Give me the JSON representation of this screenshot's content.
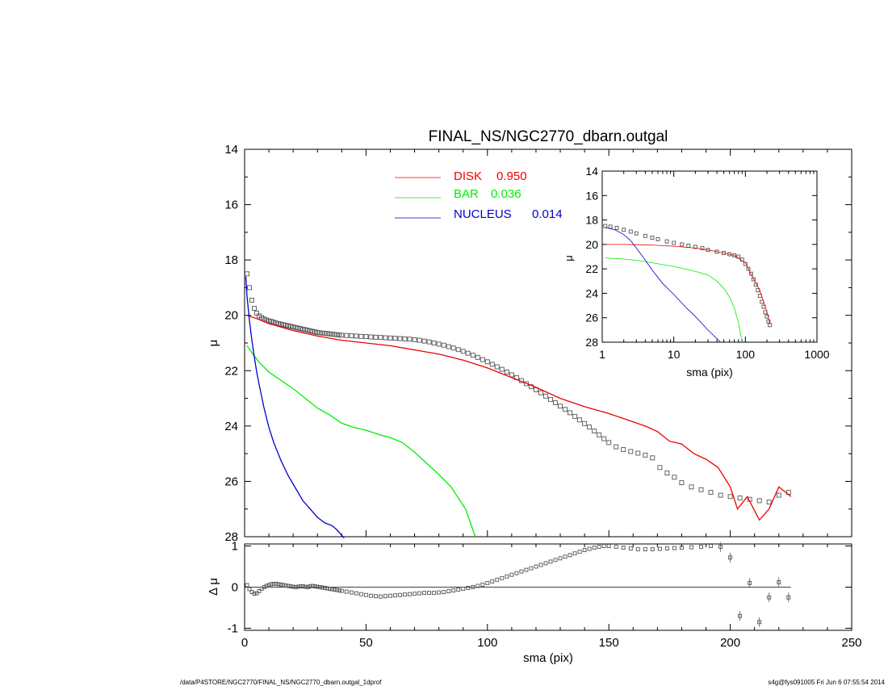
{
  "chart_data": [
    {
      "id": "main",
      "type": "scatter",
      "title": "FINAL_NS/NGC2770_dbarn.outgal",
      "xlabel": "",
      "ylabel": "μ",
      "xlim": [
        0,
        250
      ],
      "ylim": [
        14,
        28
      ],
      "y_inverted": true,
      "yticks": [
        "14",
        "16",
        "18",
        "20",
        "22",
        "24",
        "26",
        "28"
      ],
      "legend_position": "top-center",
      "legend": [
        {
          "label": "DISK",
          "value": "0.950",
          "color": "#ee0000"
        },
        {
          "label": "BAR",
          "value": "0.036",
          "color": "#00ee00"
        },
        {
          "label": "NUCLEUS",
          "value": "0.014",
          "color": "#0000cc"
        }
      ],
      "observed": {
        "x": [
          1,
          2,
          3,
          4,
          5,
          6,
          7,
          8,
          9,
          10,
          11,
          12,
          13,
          14,
          15,
          16,
          17,
          18,
          19,
          20,
          21,
          22,
          23,
          24,
          25,
          26,
          27,
          28,
          29,
          30,
          31,
          32,
          33,
          34,
          35,
          36,
          37,
          38,
          39,
          40,
          42,
          44,
          46,
          48,
          50,
          52,
          54,
          56,
          58,
          60,
          62,
          64,
          66,
          68,
          70,
          72,
          74,
          76,
          78,
          80,
          82,
          84,
          86,
          88,
          90,
          92,
          94,
          96,
          98,
          100,
          102,
          104,
          106,
          108,
          110,
          112,
          114,
          116,
          118,
          120,
          122,
          124,
          126,
          128,
          130,
          132,
          134,
          136,
          138,
          140,
          142,
          144,
          146,
          148,
          150,
          153,
          156,
          159,
          162,
          165,
          168,
          171,
          174,
          177,
          180,
          184,
          188,
          192,
          196,
          200,
          204,
          208,
          212,
          216,
          220,
          224
        ],
        "y": [
          18.5,
          19.0,
          19.45,
          19.75,
          19.92,
          20.02,
          20.08,
          20.13,
          20.17,
          20.2,
          20.22,
          20.25,
          20.28,
          20.3,
          20.32,
          20.34,
          20.36,
          20.38,
          20.4,
          20.42,
          20.44,
          20.46,
          20.48,
          20.5,
          20.52,
          20.54,
          20.56,
          20.58,
          20.6,
          20.62,
          20.63,
          20.64,
          20.65,
          20.66,
          20.67,
          20.68,
          20.69,
          20.7,
          20.71,
          20.72,
          20.73,
          20.74,
          20.75,
          20.76,
          20.77,
          20.78,
          20.79,
          20.8,
          20.81,
          20.82,
          20.83,
          20.84,
          20.85,
          20.86,
          20.88,
          20.9,
          20.93,
          20.96,
          21.0,
          21.04,
          21.08,
          21.13,
          21.18,
          21.24,
          21.3,
          21.37,
          21.44,
          21.52,
          21.6,
          21.68,
          21.77,
          21.86,
          21.95,
          22.05,
          22.15,
          22.25,
          22.36,
          22.47,
          22.58,
          22.69,
          22.8,
          22.92,
          23.04,
          23.16,
          23.28,
          23.4,
          23.52,
          23.65,
          23.78,
          23.91,
          24.04,
          24.18,
          24.32,
          24.46,
          24.6,
          24.75,
          24.85,
          24.92,
          24.98,
          25.05,
          25.15,
          25.5,
          25.7,
          25.85,
          26.05,
          26.2,
          26.3,
          26.4,
          26.5,
          26.55,
          26.6,
          26.65,
          26.7,
          26.75,
          26.5,
          26.4
        ]
      },
      "disk": {
        "x": [
          1,
          5,
          10,
          20,
          30,
          40,
          50,
          60,
          70,
          80,
          90,
          100,
          110,
          120,
          130,
          140,
          150,
          160,
          165,
          170,
          175,
          180,
          185,
          190,
          195,
          200,
          203,
          207,
          212,
          216,
          220,
          225
        ],
        "y": [
          20.0,
          20.12,
          20.3,
          20.55,
          20.75,
          20.9,
          21.0,
          21.1,
          21.25,
          21.4,
          21.62,
          21.9,
          22.25,
          22.6,
          23.0,
          23.3,
          23.55,
          23.85,
          24.0,
          24.2,
          24.55,
          24.65,
          25.0,
          25.2,
          25.5,
          26.2,
          27.0,
          26.55,
          27.4,
          27.0,
          26.2,
          26.55
        ]
      },
      "bar": {
        "x": [
          1,
          3,
          6,
          10,
          15,
          20,
          25,
          30,
          35,
          40,
          45,
          50,
          55,
          60,
          65,
          70,
          75,
          80,
          85,
          88,
          91,
          93,
          95
        ],
        "y": [
          21.1,
          21.35,
          21.7,
          22.05,
          22.35,
          22.65,
          23.0,
          23.35,
          23.6,
          23.9,
          24.05,
          24.15,
          24.3,
          24.42,
          24.6,
          24.95,
          25.35,
          25.75,
          26.2,
          26.6,
          27.0,
          27.5,
          28.0
        ]
      },
      "nucleus": {
        "x": [
          0.5,
          1,
          2,
          3,
          4,
          5,
          6,
          8,
          10,
          12,
          15,
          18,
          21,
          24,
          27,
          30,
          33,
          36,
          38,
          40,
          41
        ],
        "y": [
          18.6,
          19.3,
          20.2,
          20.9,
          21.5,
          22.05,
          22.5,
          23.35,
          24.05,
          24.6,
          25.25,
          25.8,
          26.25,
          26.7,
          27.0,
          27.3,
          27.5,
          27.6,
          27.75,
          27.95,
          28.05
        ]
      }
    },
    {
      "id": "inset",
      "type": "line",
      "xlabel": "sma (pix)",
      "ylabel": "μ",
      "x_scale": "log",
      "xlim": [
        1,
        1000
      ],
      "ylim": [
        14,
        28
      ],
      "y_inverted": true,
      "xticks": [
        "1",
        "10",
        "100",
        "1000"
      ],
      "yticks": [
        "14",
        "16",
        "18",
        "20",
        "22",
        "24",
        "26",
        "28"
      ],
      "observed": {
        "x": [
          1.1,
          1.3,
          1.6,
          2,
          2.5,
          3,
          4,
          5,
          6,
          8,
          10,
          13,
          16,
          20,
          25,
          30,
          40,
          50,
          60,
          70,
          80,
          90,
          100,
          110,
          120,
          130,
          140,
          150,
          160,
          170,
          180,
          190,
          200,
          210,
          220
        ],
        "y": [
          18.5,
          18.55,
          18.65,
          18.8,
          18.95,
          19.1,
          19.3,
          19.45,
          19.58,
          19.75,
          19.88,
          20.0,
          20.1,
          20.2,
          20.3,
          20.45,
          20.6,
          20.7,
          20.8,
          20.9,
          21.0,
          21.25,
          21.6,
          22.0,
          22.4,
          22.85,
          23.3,
          23.75,
          24.2,
          24.7,
          25.1,
          25.55,
          25.9,
          26.3,
          26.6
        ]
      },
      "disk": {
        "x": [
          1.1,
          2,
          3,
          5,
          10,
          20,
          30,
          50,
          70,
          100,
          130,
          160,
          200,
          220
        ],
        "y": [
          20.0,
          20.0,
          20.02,
          20.05,
          20.15,
          20.3,
          20.45,
          20.7,
          20.9,
          21.5,
          22.8,
          23.8,
          25.5,
          26.5
        ]
      },
      "bar": {
        "x": [
          1.1,
          2,
          3,
          5,
          10,
          20,
          30,
          40,
          50,
          60,
          70,
          80,
          90
        ],
        "y": [
          21.1,
          21.2,
          21.3,
          21.5,
          21.8,
          22.2,
          22.5,
          23.0,
          23.6,
          24.3,
          25.2,
          26.4,
          28.0
        ]
      },
      "nucleus": {
        "x": [
          1.1,
          1.5,
          2,
          2.5,
          3,
          4,
          5,
          7,
          10,
          15,
          20,
          30,
          40,
          45
        ],
        "y": [
          18.6,
          18.8,
          19.2,
          19.7,
          20.3,
          21.3,
          22.1,
          23.2,
          24.1,
          25.2,
          25.9,
          27.0,
          27.7,
          28.0
        ]
      }
    },
    {
      "id": "residual",
      "type": "scatter",
      "xlabel": "sma (pix)",
      "ylabel": "Δ μ",
      "xlim": [
        0,
        250
      ],
      "ylim": [
        -1.05,
        1.05
      ],
      "xticks": [
        "0",
        "50",
        "100",
        "150",
        "200",
        "250"
      ],
      "yticks": [
        "1",
        "0",
        "-1"
      ],
      "reference_line": {
        "y": 0,
        "x_end": 225
      },
      "residual": {
        "x": [
          1,
          2,
          3,
          4,
          5,
          6,
          7,
          8,
          9,
          10,
          11,
          12,
          13,
          14,
          15,
          16,
          17,
          18,
          19,
          20,
          21,
          22,
          23,
          24,
          25,
          26,
          27,
          28,
          29,
          30,
          31,
          32,
          33,
          34,
          35,
          36,
          37,
          38,
          39,
          40,
          42,
          44,
          46,
          48,
          50,
          52,
          54,
          56,
          58,
          60,
          62,
          64,
          66,
          68,
          70,
          72,
          74,
          76,
          78,
          80,
          82,
          84,
          86,
          88,
          90,
          92,
          94,
          96,
          98,
          100,
          102,
          104,
          106,
          108,
          110,
          112,
          114,
          116,
          118,
          120,
          122,
          124,
          126,
          128,
          130,
          132,
          134,
          136,
          138,
          140,
          142,
          144,
          146,
          148,
          150,
          153,
          156,
          159,
          162,
          165,
          168,
          171,
          174,
          177,
          180,
          184,
          188,
          192,
          196,
          200,
          204,
          208,
          212,
          216,
          220,
          224
        ],
        "y": [
          0.05,
          -0.05,
          -0.12,
          -0.16,
          -0.15,
          -0.1,
          -0.04,
          0.0,
          0.03,
          0.05,
          0.07,
          0.08,
          0.08,
          0.07,
          0.06,
          0.05,
          0.04,
          0.03,
          0.02,
          0.01,
          0.0,
          0.01,
          0.02,
          0.02,
          0.01,
          0.0,
          0.02,
          0.03,
          0.02,
          0.01,
          0.0,
          -0.01,
          -0.02,
          -0.03,
          -0.04,
          -0.05,
          -0.06,
          -0.07,
          -0.08,
          -0.09,
          -0.11,
          -0.13,
          -0.15,
          -0.17,
          -0.19,
          -0.21,
          -0.22,
          -0.23,
          -0.22,
          -0.21,
          -0.2,
          -0.19,
          -0.18,
          -0.17,
          -0.16,
          -0.15,
          -0.14,
          -0.14,
          -0.14,
          -0.13,
          -0.12,
          -0.1,
          -0.08,
          -0.06,
          -0.04,
          -0.02,
          0.0,
          0.03,
          0.06,
          0.1,
          0.14,
          0.18,
          0.22,
          0.26,
          0.3,
          0.34,
          0.38,
          0.42,
          0.46,
          0.5,
          0.54,
          0.58,
          0.62,
          0.66,
          0.7,
          0.74,
          0.78,
          0.82,
          0.86,
          0.9,
          0.93,
          0.96,
          0.98,
          1.0,
          1.0,
          0.98,
          0.96,
          0.94,
          0.92,
          0.92,
          0.92,
          0.93,
          0.94,
          0.95,
          0.96,
          0.97,
          0.98,
          1.0,
          0.98,
          0.72,
          -0.7,
          0.1,
          -0.85,
          -0.25,
          0.12,
          -0.25
        ]
      }
    }
  ],
  "footer": {
    "left": "/data/P4STORE/NGC2770/FINAL_NS/NGC2770_dbarn.outgal_1dprof",
    "right": "s4g@fys091005  Fri Jun  6 07:55:54 2014"
  },
  "colors": {
    "disk": "#ee0000",
    "bar": "#00ee00",
    "nucleus": "#0000cc",
    "observed": "#555555",
    "axes": "#000000"
  }
}
